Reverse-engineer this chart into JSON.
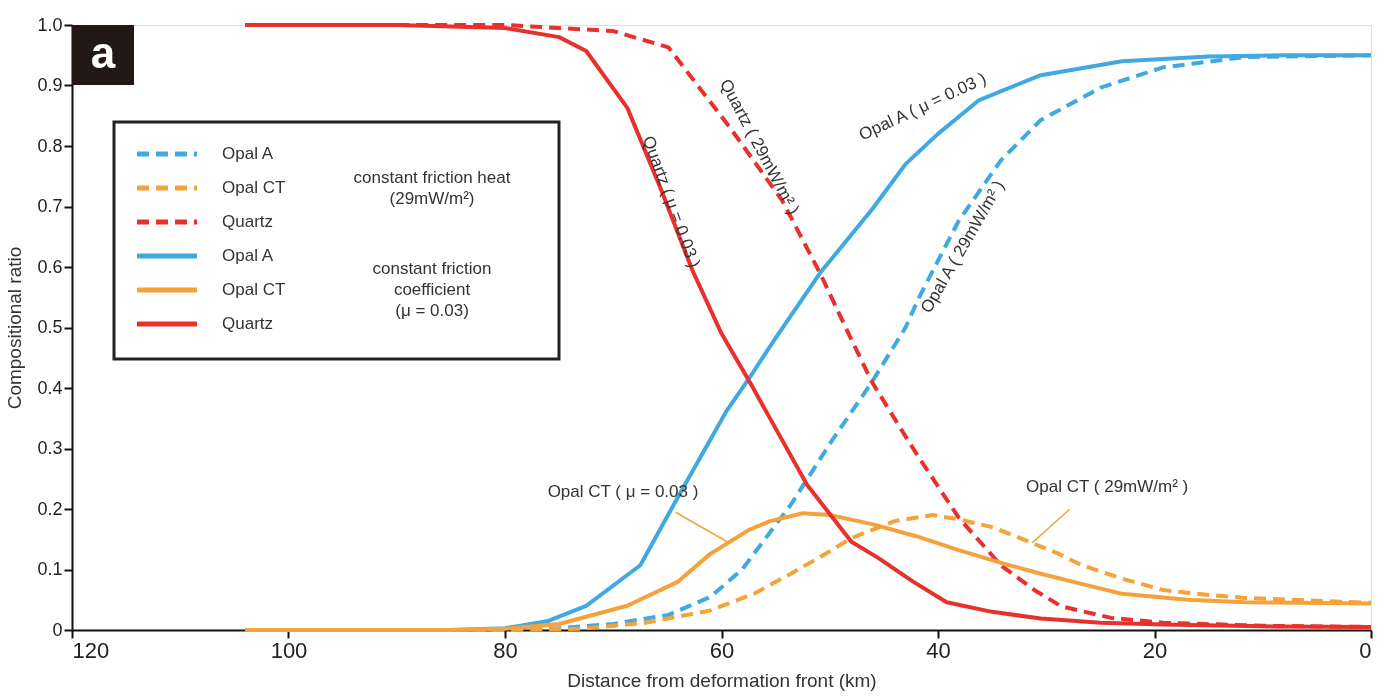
{
  "chart_data": {
    "type": "line",
    "xlabel": "Distance from deformation front (km)",
    "ylabel": "Compositional ratio",
    "xlim": [
      120,
      0
    ],
    "xticks": [
      120,
      100,
      80,
      60,
      40,
      20,
      0
    ],
    "ylim": [
      0,
      1
    ],
    "yticks": [
      0,
      0.1,
      0.2,
      0.3,
      0.4,
      0.5,
      0.6,
      0.7,
      0.8,
      0.9,
      {
        "value": 1,
        "label": "1.0"
      }
    ],
    "grid": false,
    "legend": "top left",
    "marker": "none",
    "annotations": [
      "a",
      "constant friction heat\n(29mW/m²)",
      "constant friction\ncoefficient\n(μ = 0.03)",
      "Quartz ( μ = 0.03 )",
      "Quartz ( 29mW/m² )",
      "Opal A ( μ = 0.03 )",
      "Opal A ( 29mW/m² )",
      {
        "text": "Opal CT ( μ = 0.03 )",
        "x": 59.4,
        "y": 0.145
      },
      {
        "text": "Opal CT ( 29mW/m² )",
        "x": 31.3,
        "y": 0.144
      }
    ],
    "series": [
      {
        "name": "Opal A",
        "color": "#3fa9e0",
        "line_style": "dashed",
        "x": [
          104,
          80,
          75,
          70,
          64.9,
          61,
          58.1,
          53.6,
          49.8,
          46.1,
          43,
          41.8,
          38.1,
          34.2,
          30.5,
          24.9,
          19.2,
          11.6,
          0
        ],
        "values": [
          0,
          0,
          0.003,
          0.01,
          0.025,
          0.055,
          0.1,
          0.207,
          0.313,
          0.41,
          0.5,
          0.548,
          0.676,
          0.776,
          0.843,
          0.897,
          0.93,
          0.947,
          0.95
        ]
      },
      {
        "name": "Opal CT",
        "color": "#f5a23a",
        "line_style": "dashed",
        "x": [
          104,
          80,
          73,
          67,
          61.1,
          57,
          53.6,
          50,
          48,
          44,
          40.5,
          38.1,
          35,
          32.4,
          29,
          26.7,
          23,
          19.2,
          15,
          11.6,
          0
        ],
        "values": [
          0,
          0,
          0.002,
          0.012,
          0.032,
          0.06,
          0.093,
          0.13,
          0.152,
          0.18,
          0.19,
          0.183,
          0.17,
          0.152,
          0.127,
          0.107,
          0.085,
          0.066,
          0.058,
          0.053,
          0.045
        ]
      },
      {
        "name": "Quartz",
        "color": "#e8302d",
        "line_style": "dashed",
        "x": [
          104,
          80,
          70,
          64.9,
          59.2,
          54.4,
          50.9,
          48,
          46.1,
          43,
          41.8,
          38.1,
          34.2,
          31,
          28.6,
          24,
          19.2,
          10,
          0
        ],
        "values": [
          1,
          1,
          0.99,
          0.963,
          0.83,
          0.71,
          0.59,
          0.48,
          0.41,
          0.32,
          0.286,
          0.186,
          0.107,
          0.065,
          0.039,
          0.02,
          0.012,
          0.007,
          0.005
        ]
      },
      {
        "name": "Opal A",
        "color": "#3fa9e0",
        "line_style": "solid",
        "x": [
          104,
          85,
          80,
          76,
          72.5,
          67.5,
          63.8,
          59.6,
          57.3,
          55.1,
          50.9,
          46.1,
          43,
          40,
          36.2,
          30.5,
          23,
          15,
          8,
          0
        ],
        "values": [
          0,
          0,
          0.003,
          0.015,
          0.04,
          0.107,
          0.227,
          0.36,
          0.42,
          0.48,
          0.59,
          0.695,
          0.77,
          0.82,
          0.876,
          0.917,
          0.94,
          0.948,
          0.95,
          0.95
        ]
      },
      {
        "name": "Opal CT",
        "color": "#f5a23a",
        "line_style": "solid",
        "x": [
          104,
          85,
          80,
          75,
          68.7,
          64,
          61.1,
          57.5,
          55.5,
          52.5,
          50,
          46.1,
          42,
          38.1,
          34,
          30.5,
          26,
          23,
          17,
          11.6,
          0
        ],
        "values": [
          0,
          0,
          0.002,
          0.01,
          0.04,
          0.08,
          0.125,
          0.165,
          0.18,
          0.193,
          0.19,
          0.175,
          0.155,
          0.132,
          0.11,
          0.093,
          0.073,
          0.06,
          0.05,
          0.046,
          0.044
        ]
      },
      {
        "name": "Quartz",
        "color": "#e8302d",
        "line_style": "solid",
        "x": [
          104,
          90,
          80,
          75,
          72.5,
          68.7,
          65.6,
          62.7,
          60,
          57.3,
          52.1,
          48,
          45.6,
          42.3,
          39.2,
          35,
          30.5,
          25,
          19.2,
          10,
          0
        ],
        "values": [
          1,
          1,
          0.995,
          0.98,
          0.957,
          0.863,
          0.729,
          0.595,
          0.49,
          0.407,
          0.24,
          0.146,
          0.12,
          0.08,
          0.046,
          0.03,
          0.019,
          0.012,
          0.009,
          0.006,
          0.005
        ]
      }
    ]
  }
}
